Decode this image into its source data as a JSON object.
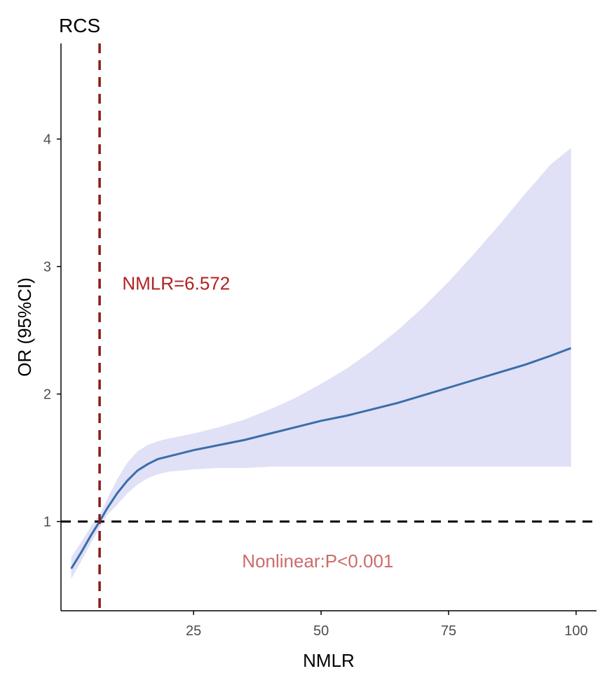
{
  "chart_data": {
    "type": "line",
    "title": "RCS",
    "xlabel": "NMLR",
    "ylabel": "OR (95%CI)",
    "xlim": [
      -1,
      104
    ],
    "ylim": [
      0.3,
      4.75
    ],
    "xticks": [
      25,
      50,
      75,
      100
    ],
    "yticks": [
      1,
      2,
      3,
      4
    ],
    "grid": false,
    "series": [
      {
        "role": "estimate",
        "color": "#3a6ea8",
        "x": [
          1,
          3,
          5,
          6.572,
          8,
          10,
          12,
          14,
          16,
          18,
          20,
          25,
          30,
          35,
          40,
          45,
          50,
          55,
          60,
          65,
          70,
          75,
          80,
          85,
          90,
          95,
          99
        ],
        "y": [
          0.63,
          0.76,
          0.9,
          1.0,
          1.1,
          1.22,
          1.32,
          1.4,
          1.45,
          1.49,
          1.51,
          1.56,
          1.6,
          1.64,
          1.69,
          1.74,
          1.79,
          1.83,
          1.88,
          1.93,
          1.99,
          2.05,
          2.11,
          2.17,
          2.23,
          2.3,
          2.36
        ]
      },
      {
        "role": "ci-upper",
        "color": "#e0e0f7",
        "x": [
          1,
          3,
          5,
          6.572,
          8,
          10,
          12,
          14,
          16,
          18,
          20,
          25,
          30,
          35,
          40,
          45,
          50,
          55,
          60,
          65,
          70,
          75,
          80,
          85,
          90,
          95,
          99
        ],
        "y": [
          0.72,
          0.84,
          0.97,
          1.05,
          1.17,
          1.33,
          1.46,
          1.55,
          1.6,
          1.63,
          1.65,
          1.69,
          1.74,
          1.8,
          1.88,
          1.97,
          2.08,
          2.2,
          2.34,
          2.5,
          2.68,
          2.88,
          3.1,
          3.33,
          3.57,
          3.8,
          3.93
        ]
      },
      {
        "role": "ci-lower",
        "color": "#e0e0f7",
        "x": [
          1,
          3,
          5,
          6.572,
          8,
          10,
          12,
          14,
          16,
          18,
          20,
          25,
          30,
          35,
          40,
          45,
          50,
          55,
          60,
          65,
          70,
          75,
          80,
          85,
          90,
          95,
          99
        ],
        "y": [
          0.55,
          0.69,
          0.84,
          0.95,
          1.05,
          1.13,
          1.22,
          1.29,
          1.34,
          1.37,
          1.39,
          1.41,
          1.42,
          1.42,
          1.43,
          1.43,
          1.43,
          1.43,
          1.43,
          1.43,
          1.43,
          1.43,
          1.43,
          1.43,
          1.43,
          1.43,
          1.43
        ]
      }
    ],
    "reference_lines": [
      {
        "orientation": "horizontal",
        "value": 1,
        "color": "#000000",
        "style": "dashed"
      },
      {
        "orientation": "vertical",
        "value": 6.572,
        "color": "#8b1a1a",
        "style": "dashed"
      }
    ],
    "annotations": [
      {
        "text": "NMLR=6.572",
        "x": 11,
        "y": 2.82,
        "color": "#b22222"
      },
      {
        "text": "Nonlinear:P<0.001",
        "x": 34.5,
        "y": 0.64,
        "color": "#cd6b6b"
      }
    ]
  }
}
